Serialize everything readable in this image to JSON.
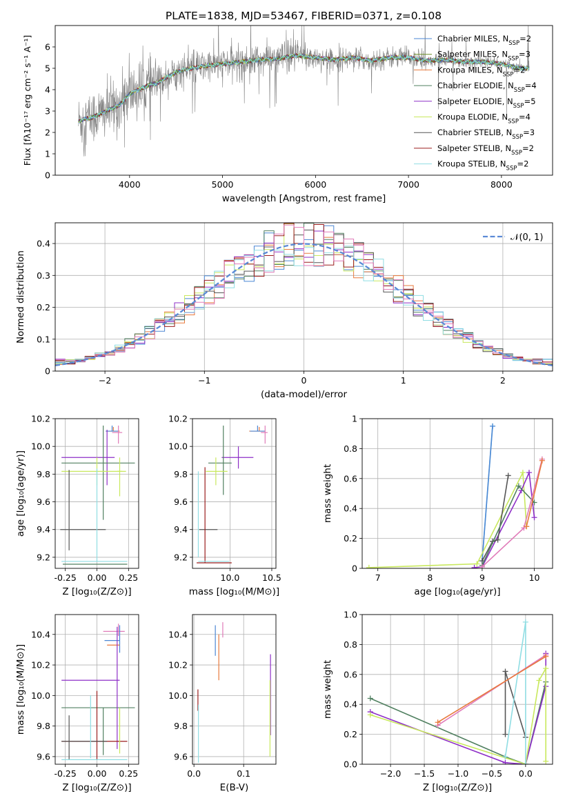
{
  "title": "PLATE=1838, MJD=53467, FIBERID=0371, z=0.108",
  "colors": {
    "chabrier_miles": "#4a86d4",
    "salpeter_miles": "#6b8e23",
    "kroupa_miles": "#e8793c",
    "chabrier_elodie": "#4f7f5f",
    "salpeter_elodie": "#8d2ec7",
    "kroupa_elodie": "#c8e85c",
    "chabrier_stelib": "#555555",
    "salpeter_stelib": "#9a1b1b",
    "kroupa_stelib": "#8fdde3",
    "pink": "#e07ab8",
    "gaussian": "#5b8ad6",
    "grid": "#b0b0b0",
    "data": "#808080"
  },
  "chart_data": [
    {
      "id": "spectrum",
      "type": "line",
      "xlabel": "wavelength [Angstrom, rest frame]",
      "ylabel": "Flux [fλ10⁻¹⁷ erg cm⁻² s⁻¹ A⁻¹]",
      "xlim": [
        3200,
        8550
      ],
      "ylim": [
        0,
        7
      ],
      "xticks": [
        4000,
        5000,
        6000,
        7000,
        8000
      ],
      "yticks": [
        0,
        1,
        2,
        3,
        4,
        5,
        6
      ],
      "grid": false,
      "legend": "top-right",
      "legend_entries": [
        {
          "label": "Chabrier MILES, N",
          "sub": "SSP",
          "suffix": "=2",
          "color": "chabrier_miles"
        },
        {
          "label": "Salpeter MILES, N",
          "sub": "SSP",
          "suffix": "=3",
          "color": "salpeter_miles"
        },
        {
          "label": "Kroupa MILES, N",
          "sub": "SSP",
          "suffix": "=2",
          "color": "kroupa_miles"
        },
        {
          "label": "Chabrier ELODIE, N",
          "sub": "SSP",
          "suffix": "=4",
          "color": "chabrier_elodie"
        },
        {
          "label": "Salpeter ELODIE, N",
          "sub": "SSP",
          "suffix": "=5",
          "color": "salpeter_elodie"
        },
        {
          "label": "Kroupa ELODIE, N",
          "sub": "SSP",
          "suffix": "=4",
          "color": "kroupa_elodie"
        },
        {
          "label": "Chabrier STELIB, N",
          "sub": "SSP",
          "suffix": "=3",
          "color": "chabrier_stelib"
        },
        {
          "label": "Salpeter STELIB, N",
          "sub": "SSP",
          "suffix": "=2",
          "color": "salpeter_stelib"
        },
        {
          "label": "Kroupa STELIB, N",
          "sub": "SSP",
          "suffix": "=2",
          "color": "kroupa_stelib"
        }
      ],
      "model_curve": {
        "x": [
          3450,
          3500,
          3600,
          3700,
          3800,
          3900,
          4000,
          4100,
          4200,
          4300,
          4400,
          4500,
          4600,
          4800,
          5000,
          5200,
          5400,
          5600,
          5800,
          6000,
          6200,
          6400,
          6600,
          6800,
          7000,
          7200,
          7400,
          7600,
          7800,
          8000,
          8200,
          8300
        ],
        "y": [
          2.5,
          2.6,
          2.7,
          2.9,
          3.1,
          3.3,
          3.8,
          4.0,
          4.2,
          4.3,
          4.6,
          4.8,
          4.95,
          5.1,
          5.2,
          5.3,
          5.4,
          5.45,
          5.6,
          5.5,
          5.4,
          5.5,
          5.35,
          5.5,
          5.5,
          5.35,
          5.4,
          5.3,
          5.3,
          5.2,
          5.0,
          5.0
        ]
      }
    },
    {
      "id": "residuals",
      "type": "line",
      "xlabel": "(data-model)/error",
      "ylabel": "Normed distribution",
      "xlim": [
        -2.5,
        2.5
      ],
      "ylim": [
        0,
        0.465
      ],
      "xticks": [
        -2,
        -1,
        0,
        1,
        2
      ],
      "yticks": [
        0.0,
        0.1,
        0.2,
        0.3,
        0.4
      ],
      "grid": true,
      "legend": "top-right",
      "gaussian_label": "𝒩(0, 1)",
      "bins": [
        -2.5,
        2.5,
        50
      ]
    },
    {
      "id": "age_vs_Z",
      "type": "scatter",
      "xlabel": "Z [log₁₀(Z/Z⊙)]",
      "ylabel": "age  [log₁₀(age/yr)]",
      "xlim": [
        -0.33,
        0.33
      ],
      "ylim": [
        9.12,
        10.2
      ],
      "xticks": [
        -0.25,
        0.0,
        0.25
      ],
      "yticks": [
        9.2,
        9.4,
        9.6,
        9.8,
        10.0,
        10.2
      ],
      "grid": true,
      "bars": [
        {
          "x": 0.13,
          "xerr": [
            0.06,
            0.05
          ],
          "y": 10.11,
          "yerr": [
            0.0,
            0.03
          ],
          "color": "kroupa_miles"
        },
        {
          "x": 0.12,
          "xerr": [
            0.05,
            0.05
          ],
          "y": 10.11,
          "yerr": [
            0.0,
            0.04
          ],
          "color": "chabrier_miles"
        },
        {
          "x": 0.17,
          "xerr": [
            0.05,
            0.03
          ],
          "y": 10.1,
          "yerr": [
            0.08,
            0.05
          ],
          "color": "pink"
        },
        {
          "x": 0.08,
          "xerr": [
            0.36,
            0.06
          ],
          "y": 9.92,
          "yerr": [
            0.2,
            0.2
          ],
          "color": "salpeter_elodie"
        },
        {
          "x": 0.05,
          "xerr": [
            0.33,
            0.25
          ],
          "y": 9.88,
          "yerr": [
            0.41,
            0.27
          ],
          "color": "chabrier_elodie"
        },
        {
          "x": 0.0,
          "xerr": [
            0.28,
            0.23
          ],
          "y": 9.82,
          "yerr": [
            0.1,
            0.1
          ],
          "color": "kroupa_elodie"
        },
        {
          "x": 0.18,
          "xerr": [
            0.02,
            0.02
          ],
          "y": 9.82,
          "yerr": [
            0.18,
            0.1
          ],
          "color": "kroupa_elodie"
        },
        {
          "x": -0.22,
          "xerr": [
            0.0,
            0.0
          ],
          "y": 9.83,
          "yerr": [
            0.58,
            0.0
          ],
          "color": "chabrier_stelib"
        },
        {
          "x": -0.07,
          "xerr": [
            0.22,
            0.14
          ],
          "y": 9.4,
          "yerr": [
            0.0,
            0.0
          ],
          "color": "chabrier_stelib"
        },
        {
          "x": 0.0,
          "xerr": [
            0.28,
            0.24
          ],
          "y": 9.17,
          "yerr": [
            0.0,
            0.67
          ],
          "color": "kroupa_stelib"
        },
        {
          "x": -0.05,
          "xerr": [
            0.22,
            0.29
          ],
          "y": 9.15,
          "yerr": [
            0.0,
            0.0
          ],
          "color": "chabrier_elodie"
        }
      ]
    },
    {
      "id": "age_vs_mass",
      "type": "scatter",
      "xlabel": "mass [log₁₀(M/M⊙)]",
      "ylabel": "",
      "xlim": [
        9.55,
        10.55
      ],
      "ylim": [
        9.12,
        10.2
      ],
      "xticks": [
        10.0,
        10.5
      ],
      "yticks": [
        9.2,
        9.4,
        9.6,
        9.8,
        10.0,
        10.2
      ],
      "grid": true,
      "bars": [
        {
          "x": 10.35,
          "xerr": [
            0.12,
            0.07
          ],
          "y": 10.11,
          "yerr": [
            0.0,
            0.03
          ],
          "color": "kroupa_miles"
        },
        {
          "x": 10.33,
          "xerr": [
            0.09,
            0.09
          ],
          "y": 10.11,
          "yerr": [
            0.0,
            0.04
          ],
          "color": "chabrier_miles"
        },
        {
          "x": 10.42,
          "xerr": [
            0.05,
            0.03
          ],
          "y": 10.1,
          "yerr": [
            0.08,
            0.05
          ],
          "color": "pink"
        },
        {
          "x": 10.1,
          "xerr": [
            0.2,
            0.18
          ],
          "y": 9.92,
          "yerr": [
            0.08,
            0.08
          ],
          "color": "salpeter_elodie"
        },
        {
          "x": 9.92,
          "xerr": [
            0.18,
            0.1
          ],
          "y": 9.88,
          "yerr": [
            0.23,
            0.27
          ],
          "color": "chabrier_elodie"
        },
        {
          "x": 9.83,
          "xerr": [
            0.12,
            0.14
          ],
          "y": 9.82,
          "yerr": [
            0.1,
            0.1
          ],
          "color": "kroupa_elodie"
        },
        {
          "x": 9.62,
          "xerr": [
            0.0,
            0.0
          ],
          "y": 9.82,
          "yerr": [
            0.62,
            0.0
          ],
          "color": "kroupa_stelib"
        },
        {
          "x": 9.7,
          "xerr": [
            0.07,
            0.15
          ],
          "y": 9.4,
          "yerr": [
            0.0,
            0.0
          ],
          "color": "chabrier_stelib"
        },
        {
          "x": 9.7,
          "xerr": [
            0.0,
            0.0
          ],
          "y": 9.16,
          "yerr": [
            0.0,
            0.69
          ],
          "color": "salpeter_stelib"
        },
        {
          "x": 9.6,
          "xerr": [
            0.0,
            0.42
          ],
          "y": 9.16,
          "yerr": [
            0.0,
            0.0
          ],
          "color": "salpeter_stelib"
        },
        {
          "x": 9.62,
          "xerr": [
            0.0,
            0.37
          ],
          "y": 9.17,
          "yerr": [
            0.0,
            0.0
          ],
          "color": "kroupa_stelib"
        }
      ]
    },
    {
      "id": "weight_vs_age",
      "type": "line",
      "xlabel": "age  [log₁₀(age/yr)]",
      "ylabel": "mass weight",
      "xlim": [
        6.7,
        10.35
      ],
      "ylim": [
        0,
        1.0
      ],
      "xticks": [
        7,
        8,
        9,
        10
      ],
      "yticks": [
        0.0,
        0.2,
        0.4,
        0.6,
        0.8,
        1.0
      ],
      "grid": true,
      "series": [
        {
          "color": "kroupa_stelib",
          "x": [
            9.0,
            9.2
          ],
          "y": [
            0.05,
            0.95
          ]
        },
        {
          "color": "chabrier_miles",
          "x": [
            9.0,
            9.2
          ],
          "y": [
            0.05,
            0.95
          ]
        },
        {
          "color": "kroupa_elodie",
          "x": [
            6.83,
            8.9,
            9.78,
            9.85
          ],
          "y": [
            0.005,
            0.03,
            0.64,
            0.28
          ]
        },
        {
          "color": "salpeter_elodie",
          "x": [
            8.85,
            9.0,
            9.75,
            9.9,
            10.0
          ],
          "y": [
            0.005,
            0.01,
            0.52,
            0.64,
            0.34
          ]
        },
        {
          "color": "chabrier_stelib",
          "x": [
            9.0,
            9.2,
            9.3,
            9.5
          ],
          "y": [
            0.05,
            0.18,
            0.19,
            0.62
          ]
        },
        {
          "color": "chabrier_elodie",
          "x": [
            9.0,
            9.7,
            10.0
          ],
          "y": [
            0.02,
            0.55,
            0.44
          ]
        },
        {
          "color": "pink",
          "x": [
            9.0,
            9.8,
            10.15
          ],
          "y": [
            0.01,
            0.27,
            0.73
          ]
        },
        {
          "color": "kroupa_miles",
          "x": [
            9.85,
            10.15
          ],
          "y": [
            0.28,
            0.72
          ]
        }
      ]
    },
    {
      "id": "mass_vs_Z",
      "type": "scatter",
      "xlabel": "Z [log₁₀(Z/Z⊙)]",
      "ylabel": "mass [log₁₀(M/M⊙)]",
      "xlim": [
        -0.33,
        0.33
      ],
      "ylim": [
        9.55,
        10.53
      ],
      "xticks": [
        -0.25,
        0.0,
        0.25
      ],
      "yticks": [
        9.6,
        9.8,
        10.0,
        10.2,
        10.4
      ],
      "grid": true,
      "bars": [
        {
          "x": 0.17,
          "xerr": [
            0.12,
            0.05
          ],
          "y": 10.42,
          "yerr": [
            0.03,
            0.05
          ],
          "color": "pink"
        },
        {
          "x": 0.18,
          "xerr": [
            0.12,
            0.0
          ],
          "y": 10.36,
          "yerr": [
            0.08,
            0.1
          ],
          "color": "chabrier_miles"
        },
        {
          "x": 0.18,
          "xerr": [
            0.1,
            0.0
          ],
          "y": 10.33,
          "yerr": [
            0.0,
            0.0
          ],
          "color": "kroupa_miles"
        },
        {
          "x": 0.0,
          "xerr": [
            0.28,
            0.18
          ],
          "y": 10.1,
          "yerr": [
            0.0,
            0.0
          ],
          "color": "salpeter_elodie"
        },
        {
          "x": 0.05,
          "xerr": [
            0.33,
            0.25
          ],
          "y": 9.92,
          "yerr": [
            0.31,
            0.0
          ],
          "color": "chabrier_elodie"
        },
        {
          "x": 0.16,
          "xerr": [
            0.0,
            0.0
          ],
          "y": 9.95,
          "yerr": [
            0.3,
            0.5
          ],
          "color": "salpeter_elodie"
        },
        {
          "x": 0.0,
          "xerr": [
            0.28,
            0.24
          ],
          "y": 9.7,
          "yerr": [
            0.12,
            0.33
          ],
          "color": "salpeter_stelib"
        },
        {
          "x": -0.22,
          "xerr": [
            0.06,
            0.3
          ],
          "y": 9.7,
          "yerr": [
            0.12,
            0.17
          ],
          "color": "chabrier_stelib"
        },
        {
          "x": 0.0,
          "xerr": [
            0.28,
            0.24
          ],
          "y": 9.58,
          "yerr": [
            0.0,
            0.0
          ],
          "color": "kroupa_stelib"
        },
        {
          "x": -0.05,
          "xerr": [
            0.0,
            0.0
          ],
          "y": 9.65,
          "yerr": [
            0.06,
            0.35
          ],
          "color": "kroupa_stelib"
        },
        {
          "x": 0.18,
          "xerr": [
            0.0,
            0.0
          ],
          "y": 9.62,
          "yerr": [
            0.0,
            0.3
          ],
          "color": "kroupa_elodie"
        }
      ]
    },
    {
      "id": "mass_vs_ebv",
      "type": "scatter",
      "xlabel": "E(B-V)",
      "ylabel": "",
      "xlim": [
        -0.003,
        0.165
      ],
      "ylim": [
        9.55,
        10.53
      ],
      "xticks": [
        0.0,
        0.1
      ],
      "yticks": [
        9.6,
        9.8,
        10.0,
        10.2,
        10.4
      ],
      "grid": true,
      "bars": [
        {
          "x": 0.043,
          "y": 10.32,
          "yerr": [
            0.06,
            0.14
          ],
          "color": "chabrier_miles"
        },
        {
          "x": 0.05,
          "y": 10.3,
          "yerr": [
            0.2,
            0.1
          ],
          "color": "kroupa_miles"
        },
        {
          "x": 0.058,
          "y": 10.38,
          "yerr": [
            0.0,
            0.1
          ],
          "color": "pink"
        },
        {
          "x": 0.008,
          "y": 9.9,
          "yerr": [
            0.0,
            0.14
          ],
          "color": "salpeter_stelib"
        },
        {
          "x": 0.009,
          "y": 9.8,
          "yerr": [
            0.24,
            0.14
          ],
          "color": "kroupa_stelib"
        },
        {
          "x": 0.154,
          "y": 10.0,
          "yerr": [
            0.26,
            0.27
          ],
          "color": "salpeter_elodie"
        },
        {
          "x": 0.153,
          "y": 9.85,
          "yerr": [
            0.25,
            0.25
          ],
          "color": "kroupa_elodie"
        }
      ]
    },
    {
      "id": "weight_vs_Z",
      "type": "line",
      "xlabel": "Z [log₁₀(Z/Z⊙)]",
      "ylabel": "mass weight",
      "xlim": [
        -2.42,
        0.4
      ],
      "ylim": [
        0,
        1.0
      ],
      "xticks": [
        -2.0,
        -1.5,
        -1.0,
        -0.5,
        0.0
      ],
      "yticks": [
        0.0,
        0.2,
        0.4,
        0.6,
        0.8,
        1.0
      ],
      "grid": true,
      "series": [
        {
          "color": "chabrier_elodie",
          "x": [
            -2.3,
            -0.3,
            0.0,
            0.3
          ],
          "y": [
            0.44,
            0.05,
            0.0,
            0.55
          ]
        },
        {
          "color": "salpeter_elodie",
          "x": [
            -2.3,
            -0.3,
            0.0,
            0.3,
            0.3
          ],
          "y": [
            0.35,
            0.01,
            0.0,
            0.52,
            0.74
          ]
        },
        {
          "color": "kroupa_elodie",
          "x": [
            -2.3,
            0.0,
            0.2,
            0.3,
            0.3
          ],
          "y": [
            0.33,
            0.0,
            0.56,
            0.64,
            0.02
          ]
        },
        {
          "color": "chabrier_stelib",
          "x": [
            -0.3,
            -0.3,
            0.0
          ],
          "y": [
            0.2,
            0.62,
            0.18
          ]
        },
        {
          "color": "kroupa_stelib",
          "x": [
            -0.3,
            0.0,
            0.0
          ],
          "y": [
            0.05,
            0.95,
            0.0
          ]
        },
        {
          "color": "pink",
          "x": [
            -1.3,
            0.3
          ],
          "y": [
            0.26,
            0.73
          ]
        },
        {
          "color": "kroupa_miles",
          "x": [
            -1.3,
            0.3
          ],
          "y": [
            0.28,
            0.72
          ]
        }
      ]
    }
  ]
}
